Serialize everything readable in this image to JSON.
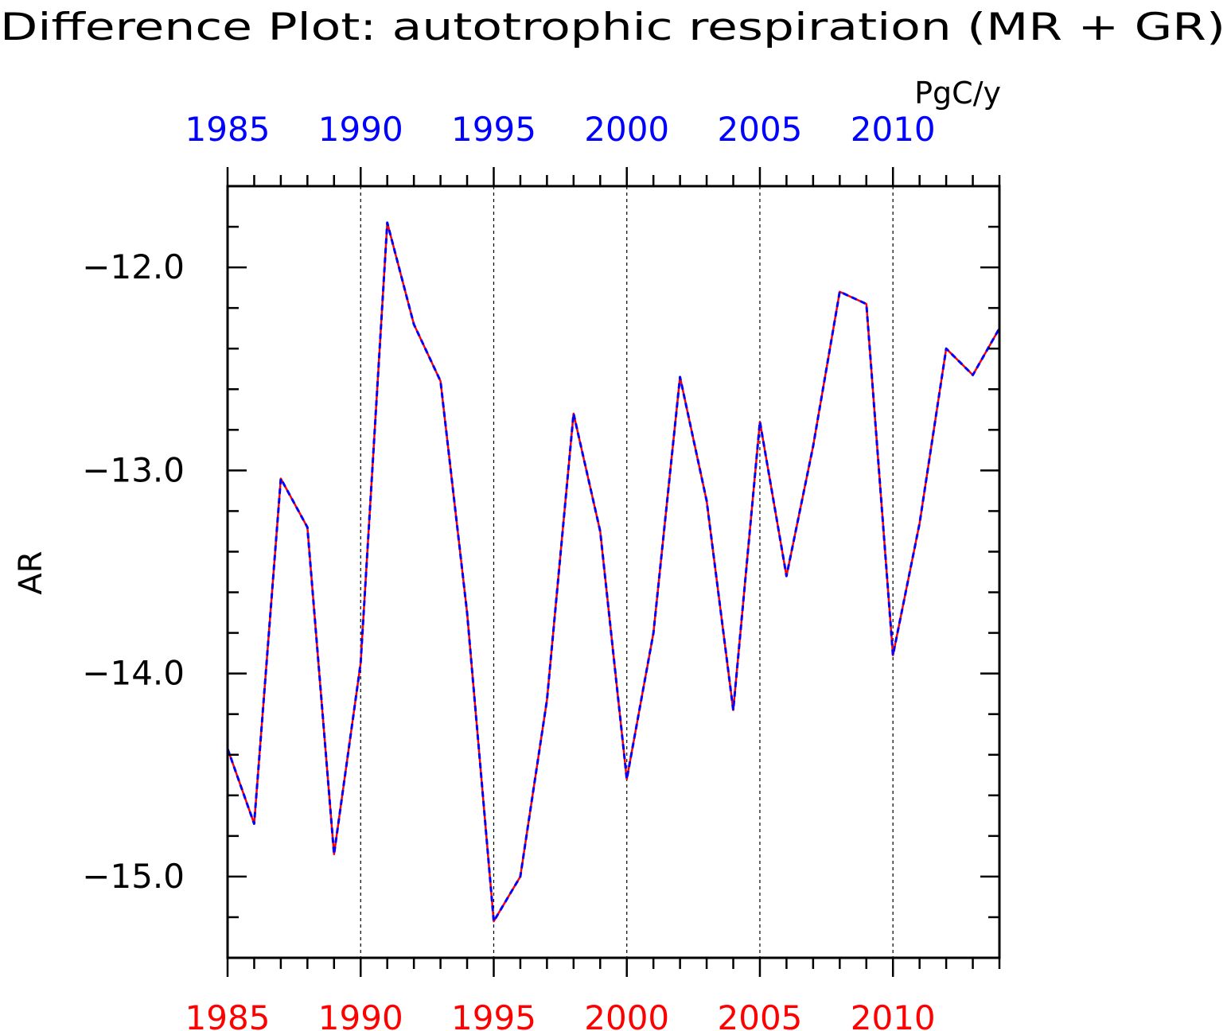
{
  "chart_data": {
    "type": "line",
    "title": "Difference Plot: autotrophic respiration (MR + GR)",
    "units": "PgC/y",
    "ylabel": "AR",
    "xlabel": "",
    "xlim": [
      1985,
      2014
    ],
    "ylim": [
      -15.4,
      -11.6
    ],
    "x_major_ticks": [
      1985,
      1990,
      1995,
      2000,
      2005,
      2010
    ],
    "x_tick_labels": [
      "1985",
      "1990",
      "1995",
      "2000",
      "2005",
      "2010"
    ],
    "y_major_ticks": [
      -15.0,
      -14.0,
      -13.0,
      -12.0
    ],
    "y_tick_labels": [
      "−15.0",
      "−14.0",
      "−13.0",
      "−12.0"
    ],
    "grid": "vertical dashed at major x ticks",
    "legend": "none",
    "x": [
      1985,
      1986,
      1987,
      1988,
      1989,
      1990,
      1991,
      1992,
      1993,
      1994,
      1995,
      1996,
      1997,
      1998,
      1999,
      2000,
      2001,
      2002,
      2003,
      2004,
      2005,
      2006,
      2007,
      2008,
      2009,
      2010,
      2011,
      2012,
      2013,
      2014
    ],
    "series": [
      {
        "color": "#ff0000",
        "style": "solid",
        "axis": "bottom",
        "values": [
          -14.37,
          -14.74,
          -13.04,
          -13.28,
          -14.89,
          -13.95,
          -11.78,
          -12.28,
          -12.56,
          -13.7,
          -15.22,
          -15.0,
          -14.13,
          -12.72,
          -13.3,
          -14.52,
          -13.8,
          -12.54,
          -13.15,
          -14.18,
          -12.76,
          -13.52,
          -12.88,
          -12.12,
          -12.18,
          -13.91,
          -13.26,
          -12.4,
          -12.53,
          -12.3
        ]
      },
      {
        "color": "#0000ff",
        "style": "dashed",
        "axis": "top",
        "values": [
          -14.37,
          -14.74,
          -13.04,
          -13.28,
          -14.89,
          -13.95,
          -11.78,
          -12.28,
          -12.56,
          -13.7,
          -15.22,
          -15.0,
          -14.13,
          -12.72,
          -13.3,
          -14.52,
          -13.8,
          -12.54,
          -13.15,
          -14.18,
          -12.76,
          -13.52,
          -12.88,
          -12.12,
          -12.18,
          -13.91,
          -13.26,
          -12.4,
          -12.53,
          -12.3
        ]
      }
    ],
    "colors": {
      "top_axis_labels": "#0000ff",
      "bottom_axis_labels": "#ff0000",
      "text": "#000000"
    }
  }
}
